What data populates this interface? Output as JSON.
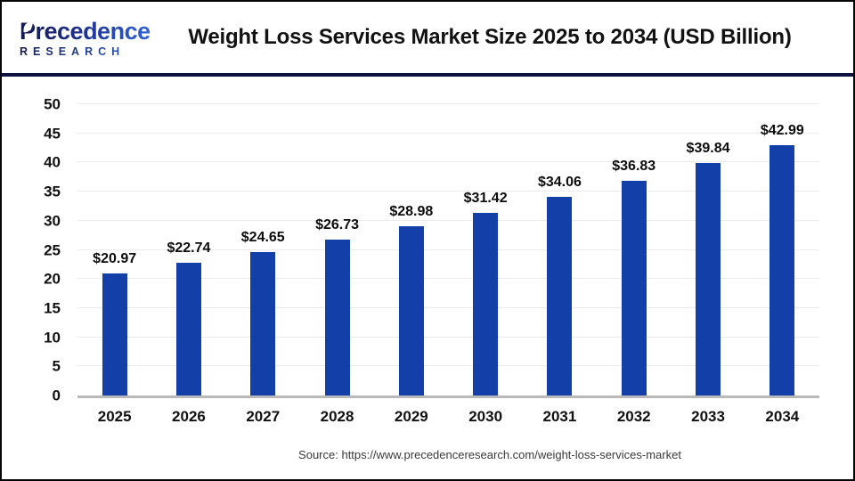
{
  "header": {
    "logo": {
      "name": "Precedence",
      "subname": "RESEARCH"
    },
    "title": "Weight Loss Services Market Size 2025 to 2034 (USD Billion)"
  },
  "chart_data": {
    "type": "bar",
    "title": "Weight Loss Services Market Size 2025 to 2034 (USD Billion)",
    "categories": [
      "2025",
      "2026",
      "2027",
      "2028",
      "2029",
      "2030",
      "2031",
      "2032",
      "2033",
      "2034"
    ],
    "values": [
      20.97,
      22.74,
      24.65,
      26.73,
      28.98,
      31.42,
      34.06,
      36.83,
      39.84,
      42.99
    ],
    "labels": [
      "$20.97",
      "$22.74",
      "$24.65",
      "$26.73",
      "$28.98",
      "$31.42",
      "$34.06",
      "$36.83",
      "$39.84",
      "$42.99"
    ],
    "xlabel": "",
    "ylabel": "",
    "ylim": [
      0,
      50
    ],
    "ytick_step": 5,
    "grid": true,
    "legend": "none",
    "bar_color": "#1340a8"
  },
  "footer": {
    "source": "Source: https://www.precedenceresearch.com/weight-loss-services-market"
  },
  "colors": {
    "bar": "#1340a8",
    "divider": "#0d1240",
    "grid": "#ebebeb",
    "axis_line": "#b9b9b9",
    "logo_dark": "#151a4e",
    "logo_blue": "#2f63d8"
  }
}
